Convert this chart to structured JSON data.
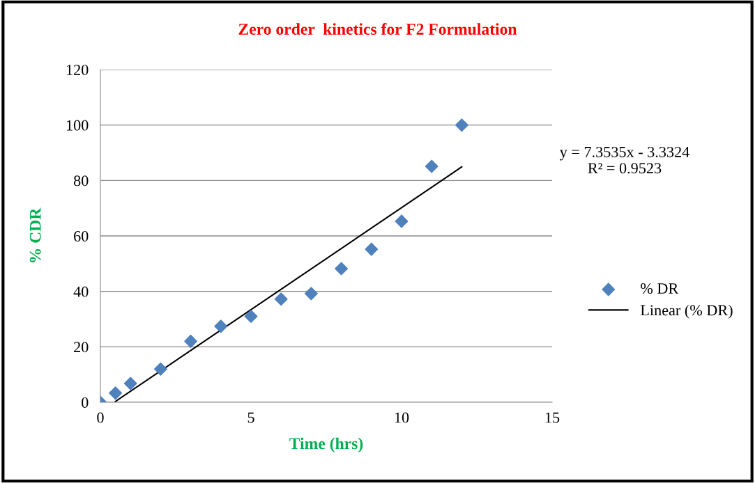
{
  "chart_data": {
    "type": "scatter",
    "title": "Zero order  kinetics for F2 Formulation",
    "xlabel": "Time (hrs)",
    "ylabel": "% CDR",
    "x": [
      0,
      0.5,
      1,
      2,
      3,
      4,
      5,
      6,
      7,
      8,
      9,
      10,
      11,
      12
    ],
    "series": [
      {
        "name": "% DR",
        "color": "#4f81bd",
        "marker": "diamond",
        "values": [
          0,
          3.3,
          6.8,
          12,
          22,
          27.4,
          31,
          37.2,
          39.2,
          48.2,
          55.2,
          65.3,
          85.1,
          100
        ]
      },
      {
        "name": "Linear (% DR)",
        "type": "line",
        "color": "#000000",
        "marker": "none",
        "line_style": "solid",
        "x": [
          0.5,
          12
        ],
        "values": [
          0.3,
          84.9
        ]
      }
    ],
    "xlim": [
      0,
      15
    ],
    "xticks": [
      0,
      5,
      10,
      15
    ],
    "ylim": [
      0,
      120
    ],
    "yticks": [
      0,
      20,
      40,
      60,
      80,
      100,
      120
    ],
    "grid": "y",
    "legend": "right",
    "annotations": [
      "y = 7.3535x - 3.3324\nR² = 0.9523"
    ]
  }
}
